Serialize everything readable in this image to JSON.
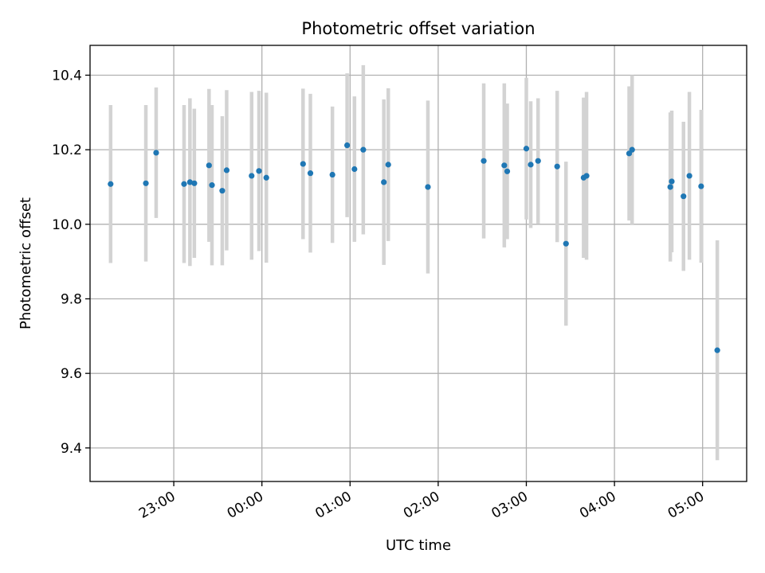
{
  "chart_data": {
    "type": "scatter",
    "title": "Photometric offset variation",
    "xlabel": "UTC time",
    "ylabel": "Photometric offset",
    "xlim": [
      "22:03",
      "05:30"
    ],
    "ylim": [
      9.31,
      10.48
    ],
    "x_ticks": [
      "23:00",
      "00:00",
      "01:00",
      "02:00",
      "03:00",
      "04:00",
      "05:00"
    ],
    "y_ticks": [
      "9.4",
      "9.6",
      "9.8",
      "10.0",
      "10.2",
      "10.4"
    ],
    "grid": true,
    "colors": {
      "points": "#1f77b4",
      "errorbars": "#d3d3d3",
      "grid": "#b0b0b0"
    },
    "points": [
      {
        "t": "22:17",
        "y": 10.108,
        "err": 0.212
      },
      {
        "t": "22:41",
        "y": 10.11,
        "err": 0.21
      },
      {
        "t": "22:48",
        "y": 10.192,
        "err": 0.175
      },
      {
        "t": "23:07",
        "y": 10.108,
        "err": 0.212
      },
      {
        "t": "23:11",
        "y": 10.113,
        "err": 0.225
      },
      {
        "t": "23:14",
        "y": 10.11,
        "err": 0.2
      },
      {
        "t": "23:24",
        "y": 10.158,
        "err": 0.205
      },
      {
        "t": "23:26",
        "y": 10.105,
        "err": 0.215
      },
      {
        "t": "23:33",
        "y": 10.09,
        "err": 0.2
      },
      {
        "t": "23:36",
        "y": 10.145,
        "err": 0.215
      },
      {
        "t": "23:53",
        "y": 10.13,
        "err": 0.225
      },
      {
        "t": "23:58",
        "y": 10.143,
        "err": 0.215
      },
      {
        "t": "00:03",
        "y": 10.125,
        "err": 0.228
      },
      {
        "t": "00:28",
        "y": 10.162,
        "err": 0.202
      },
      {
        "t": "00:33",
        "y": 10.137,
        "err": 0.213
      },
      {
        "t": "00:48",
        "y": 10.133,
        "err": 0.183
      },
      {
        "t": "00:58",
        "y": 10.212,
        "err": 0.193
      },
      {
        "t": "01:03",
        "y": 10.148,
        "err": 0.195
      },
      {
        "t": "01:09",
        "y": 10.2,
        "err": 0.227
      },
      {
        "t": "01:23",
        "y": 10.113,
        "err": 0.222
      },
      {
        "t": "01:26",
        "y": 10.16,
        "err": 0.205
      },
      {
        "t": "01:53",
        "y": 10.1,
        "err": 0.232
      },
      {
        "t": "02:31",
        "y": 10.17,
        "err": 0.208
      },
      {
        "t": "02:45",
        "y": 10.158,
        "err": 0.22
      },
      {
        "t": "02:47",
        "y": 10.142,
        "err": 0.182
      },
      {
        "t": "03:00",
        "y": 10.203,
        "err": 0.19
      },
      {
        "t": "03:03",
        "y": 10.16,
        "err": 0.17
      },
      {
        "t": "03:08",
        "y": 10.17,
        "err": 0.168
      },
      {
        "t": "03:21",
        "y": 10.155,
        "err": 0.203
      },
      {
        "t": "03:27",
        "y": 9.948,
        "err": 0.22
      },
      {
        "t": "03:39",
        "y": 10.125,
        "err": 0.215
      },
      {
        "t": "03:41",
        "y": 10.13,
        "err": 0.225
      },
      {
        "t": "04:10",
        "y": 10.19,
        "err": 0.18
      },
      {
        "t": "04:12",
        "y": 10.2,
        "err": 0.2
      },
      {
        "t": "04:38",
        "y": 10.1,
        "err": 0.2
      },
      {
        "t": "04:39",
        "y": 10.115,
        "err": 0.19
      },
      {
        "t": "04:47",
        "y": 10.075,
        "err": 0.2
      },
      {
        "t": "04:51",
        "y": 10.13,
        "err": 0.225
      },
      {
        "t": "04:59",
        "y": 10.102,
        "err": 0.205
      },
      {
        "t": "05:10",
        "y": 9.662,
        "err": 0.295
      }
    ]
  }
}
